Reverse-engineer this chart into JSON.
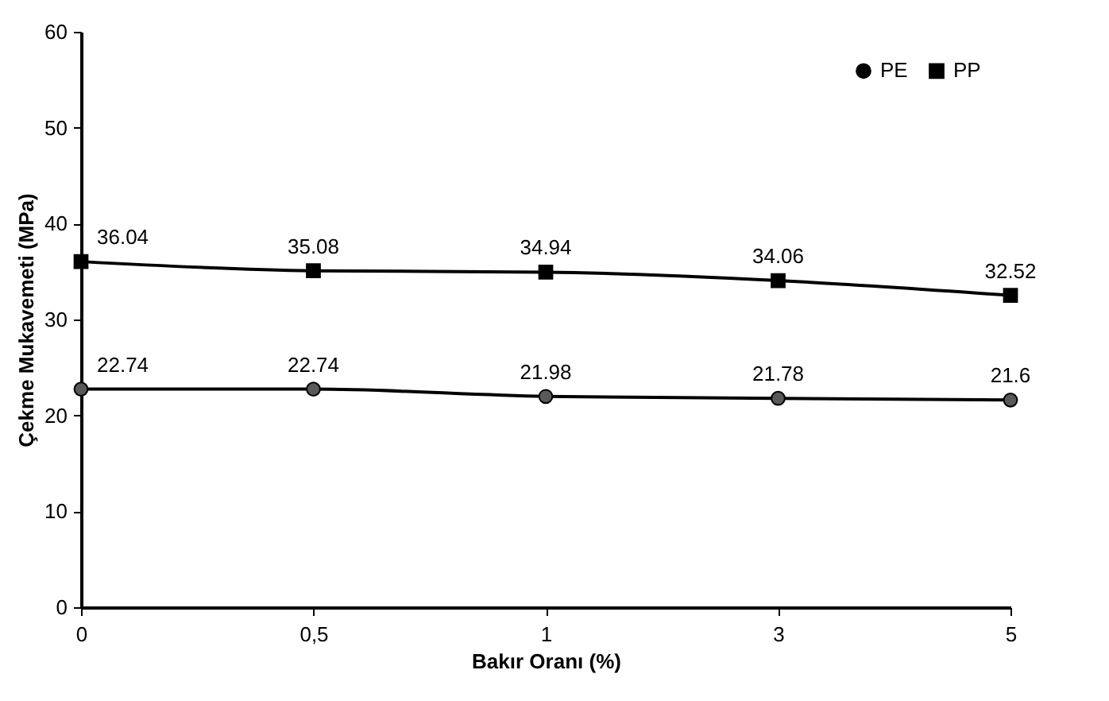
{
  "chart_data": {
    "type": "line",
    "xlabel": "Bakır Oranı (%)",
    "ylabel": "Çekme Mukavemeti (MPa)",
    "categories": [
      "0",
      "0,5",
      "1",
      "3",
      "5"
    ],
    "series": [
      {
        "name": "PE",
        "color": "#000000",
        "marker": "circle",
        "values": [
          22.74,
          22.74,
          21.98,
          21.78,
          21.6
        ]
      },
      {
        "name": "PP",
        "color": "#000000",
        "marker": "square",
        "values": [
          36.04,
          35.08,
          34.94,
          34.06,
          32.52
        ]
      }
    ],
    "ylim": [
      0,
      60
    ],
    "yticks": [
      0,
      10,
      20,
      30,
      40,
      50,
      60
    ],
    "grid": false,
    "legend": "top right",
    "data_labels": true
  }
}
